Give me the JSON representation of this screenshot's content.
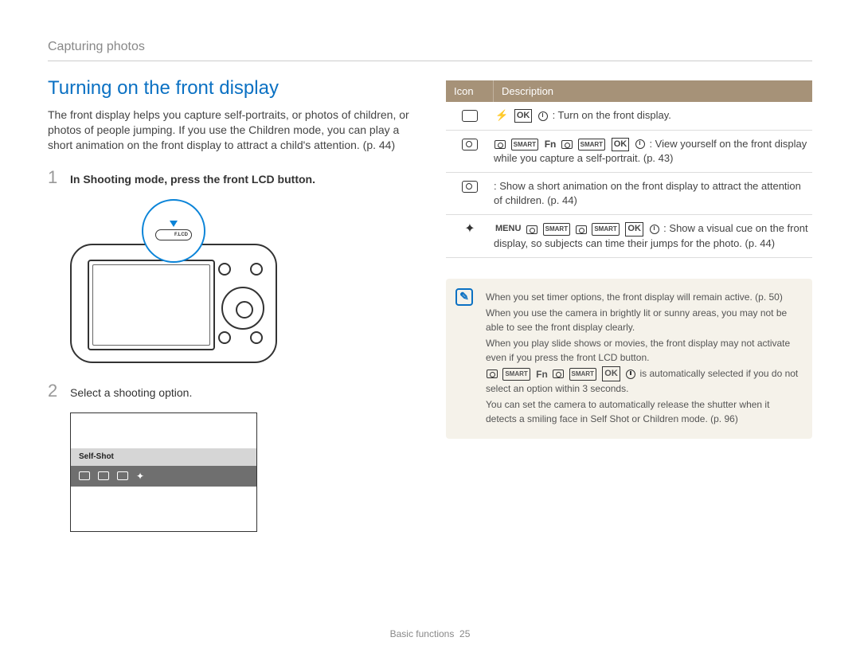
{
  "breadcrumb": "Capturing photos",
  "heading": "Turning on the front display",
  "intro": "The front display helps you capture self-portraits, or photos of children, or photos of people jumping. If you use the Children mode, you can play a short animation on the front display to attract a child's attention. (p. 44)",
  "steps": {
    "s1": {
      "num": "1",
      "text": "In Shooting mode, press the front LCD button."
    },
    "s2": {
      "num": "2",
      "text": "Select a shooting option."
    }
  },
  "callout": {
    "button_label": "F.LCD"
  },
  "option_box": {
    "label": "Self-Shot"
  },
  "table": {
    "headers": {
      "icon": "Icon",
      "desc": "Description"
    },
    "rows": {
      "r1": ": Turn on the front display.",
      "r2": ": View yourself on the front display while you capture a self-portrait. (p. 43)",
      "r3": ": Show a short animation on the front display to attract the attention of children. (p. 44)",
      "r4": ": Show a visual cue on the front display, so subjects can time their jumps for the photo. (p. 44)"
    },
    "inline": {
      "fn": "Fn",
      "ok": "OK",
      "menu": "MENU",
      "smart": "SMART"
    }
  },
  "notes": {
    "n1": "When you set timer options, the front display will remain active. (p. 50)",
    "n2": "When you use the camera in brightly lit or sunny areas, you may not be able to see the front display clearly.",
    "n3": "When you play slide shows or movies, the front display may not activate even if you press the front LCD button.",
    "n4": " is automatically selected if you do not select an option within 3 seconds.",
    "n5": "You can set the camera to automatically release the shutter when it detects a smiling face in Self Shot or Children mode. (p. 96)"
  },
  "footer": {
    "section": "Basic functions",
    "page": "25"
  },
  "colors": {
    "accent": "#0b71c3",
    "callout": "#0b84d8",
    "table_header_bg": "#a69278",
    "note_bg": "#f5f2ea",
    "text": "#333333",
    "muted": "#888888"
  }
}
